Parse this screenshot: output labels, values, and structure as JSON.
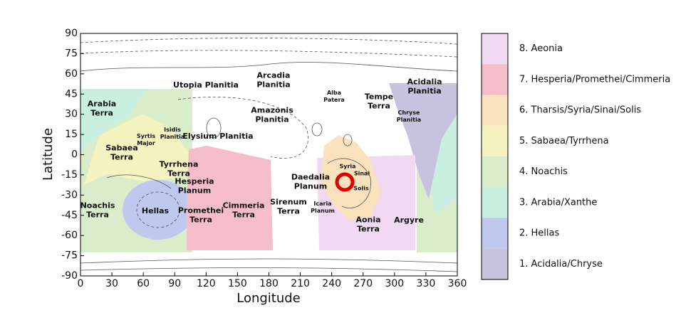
{
  "map": {
    "xlabel": "Longitude",
    "ylabel": "Latitude",
    "xlim": [
      0,
      360
    ],
    "ylim": [
      -90,
      90
    ],
    "xticks": [
      0,
      30,
      60,
      90,
      120,
      150,
      180,
      210,
      240,
      270,
      300,
      330,
      360
    ],
    "yticks": [
      -90,
      -75,
      -60,
      -45,
      -30,
      -15,
      0,
      15,
      30,
      45,
      60,
      75,
      90
    ],
    "legend": [
      {
        "label": "8. Aeonia",
        "color": "#f1d9f4"
      },
      {
        "label": "7. Hesperia/Promethei/Cimmeria",
        "color": "#f5bccb"
      },
      {
        "label": "6. Tharsis/Syria/Sinai/Solis",
        "color": "#fae2bd"
      },
      {
        "label": "5. Sabaea/Tyrrhena",
        "color": "#f5f3c0"
      },
      {
        "label": "4. Noachis",
        "color": "#d9edca"
      },
      {
        "label": "3. Arabia/Xanthe",
        "color": "#c9efe1"
      },
      {
        "label": "2. Hellas",
        "color": "#bfc8ef"
      },
      {
        "label": "1. Acidalia/Chryse",
        "color": "#c7c3de"
      }
    ],
    "places": [
      "Utopia Planitia",
      "Arcadia Planitia",
      "Amazonis Planitia",
      "Elysium Planitia",
      "Alba Patera",
      "Tempe Terra",
      "Acidalia Planitia",
      "Chryse Planitia",
      "Arabia Terra",
      "Isidis Planitia",
      "Syrtis Major",
      "Sabaea Terra",
      "Tyrrhena Terra",
      "Hesperia Planum",
      "Syria",
      "Sinai",
      "Solis",
      "Daedalia Planum",
      "Noachis Terra",
      "Hellas",
      "Promethei Terra",
      "Cimmeria Terra",
      "Sirenum Terra",
      "Icaria Planum",
      "Aonia Terra",
      "Argyre"
    ]
  }
}
